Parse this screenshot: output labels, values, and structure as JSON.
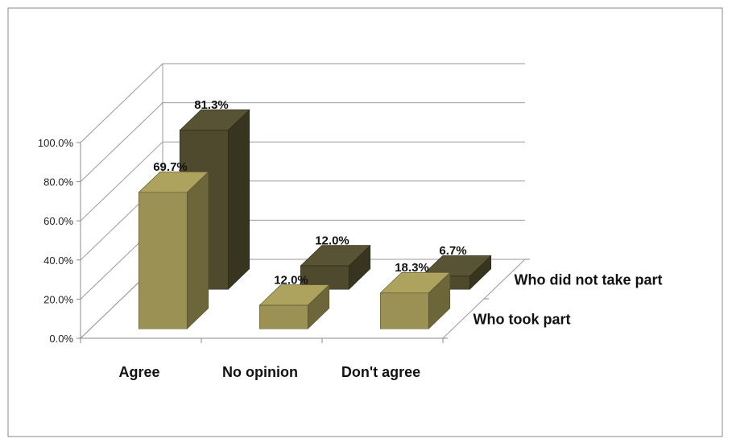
{
  "chart_data": {
    "type": "bar",
    "categories": [
      "Agree",
      "No opinion",
      "Don't agree"
    ],
    "series": [
      {
        "name": "Who took part",
        "values": [
          69.7,
          12.0,
          18.3
        ],
        "labels": [
          "69.7%",
          "12.0%",
          "18.3%"
        ],
        "color": "#9b9155"
      },
      {
        "name": "Who did not take part",
        "values": [
          81.3,
          12.0,
          6.7
        ],
        "labels": [
          "81.3%",
          "12.0%",
          "6.7%"
        ],
        "color": "#4f4a2e"
      }
    ],
    "yticks": [
      "0.0%",
      "20.0%",
      "40.0%",
      "60.0%",
      "80.0%",
      "100.0%"
    ],
    "ylim": [
      0,
      100
    ],
    "title": "",
    "xlabel": "",
    "ylabel": "",
    "grid": true,
    "style": "3d-clustered-column"
  }
}
